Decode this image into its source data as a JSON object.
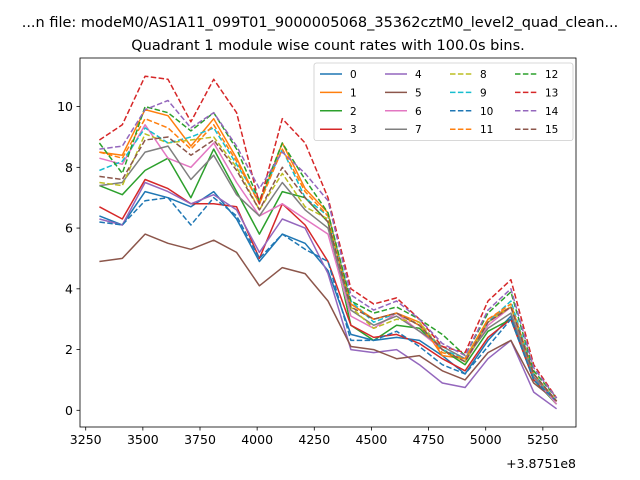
{
  "chart_data": {
    "type": "line",
    "suptitle": "...n file: modeM0/AS1A11_099T01_9000005068_35362cztM0_level2_quad_clean...",
    "title": "Quadrant 1 module wise count rates with 100.0s bins.",
    "xlabel": "",
    "ylabel": "",
    "x_offset_label": "+3.8751e8",
    "xlim": [
      3225,
      5395
    ],
    "ylim": [
      -0.55,
      11.6
    ],
    "xticks": [
      3250,
      3500,
      3750,
      4000,
      4250,
      4500,
      4750,
      5000,
      5250
    ],
    "yticks": [
      0,
      2,
      4,
      6,
      8,
      10
    ],
    "legend_position": "upper right",
    "legend_columns": 4,
    "grid": false,
    "x": [
      3310,
      3410,
      3510,
      3610,
      3710,
      3810,
      3910,
      4010,
      4110,
      4210,
      4310,
      4410,
      4510,
      4610,
      4710,
      4810,
      4910,
      5010,
      5110,
      5210,
      5310
    ],
    "series": [
      {
        "name": "0",
        "color": "#1f77b4",
        "dash": "solid",
        "values": [
          6.4,
          6.1,
          7.2,
          7.0,
          6.7,
          7.2,
          6.3,
          4.9,
          5.8,
          5.5,
          4.6,
          2.5,
          2.3,
          2.4,
          2.3,
          1.8,
          1.2,
          2.3,
          3.1,
          1.0,
          0.3
        ]
      },
      {
        "name": "1",
        "color": "#ff7f0e",
        "dash": "solid",
        "values": [
          8.5,
          8.4,
          9.9,
          9.7,
          8.7,
          9.6,
          8.3,
          6.8,
          8.8,
          7.3,
          6.5,
          3.5,
          3.0,
          3.2,
          2.9,
          1.8,
          1.7,
          3.0,
          3.4,
          1.2,
          0.3
        ]
      },
      {
        "name": "2",
        "color": "#2ca02c",
        "dash": "solid",
        "values": [
          7.4,
          7.1,
          7.9,
          8.3,
          7.0,
          8.6,
          7.2,
          5.8,
          7.2,
          7.0,
          6.2,
          2.8,
          2.3,
          2.8,
          2.7,
          2.0,
          1.5,
          2.6,
          3.0,
          1.0,
          0.2
        ]
      },
      {
        "name": "3",
        "color": "#d62728",
        "dash": "solid",
        "values": [
          6.7,
          6.3,
          7.6,
          7.3,
          6.8,
          6.8,
          6.7,
          5.0,
          6.8,
          6.1,
          4.9,
          2.8,
          2.4,
          2.5,
          2.2,
          1.7,
          1.3,
          2.4,
          3.0,
          1.0,
          0.3
        ]
      },
      {
        "name": "4",
        "color": "#9467bd",
        "dash": "solid",
        "values": [
          6.3,
          6.1,
          7.5,
          7.2,
          6.8,
          7.1,
          6.6,
          5.2,
          6.3,
          6.0,
          4.5,
          2.0,
          1.9,
          2.0,
          1.5,
          0.9,
          0.75,
          1.7,
          2.3,
          0.6,
          0.05
        ]
      },
      {
        "name": "5",
        "color": "#8c564b",
        "dash": "solid",
        "values": [
          4.9,
          5.0,
          5.8,
          5.5,
          5.3,
          5.6,
          5.2,
          4.1,
          4.7,
          4.5,
          3.6,
          2.1,
          2.0,
          1.7,
          1.8,
          1.3,
          1.0,
          1.9,
          2.3,
          0.9,
          0.3
        ]
      },
      {
        "name": "6",
        "color": "#e377c2",
        "dash": "solid",
        "values": [
          8.3,
          8.1,
          9.4,
          8.3,
          8.0,
          8.8,
          7.5,
          6.4,
          6.8,
          6.3,
          5.8,
          3.1,
          2.7,
          3.2,
          2.6,
          2.0,
          1.6,
          2.8,
          3.4,
          1.1,
          0.2
        ]
      },
      {
        "name": "7",
        "color": "#7f7f7f",
        "dash": "solid",
        "values": [
          7.4,
          7.5,
          8.5,
          8.7,
          7.6,
          8.4,
          7.1,
          6.4,
          7.5,
          6.6,
          6.0,
          3.3,
          2.8,
          3.1,
          2.6,
          2.1,
          1.7,
          2.7,
          3.2,
          1.1,
          0.3
        ]
      },
      {
        "name": "8",
        "color": "#bcbd22",
        "dash": "dashed",
        "values": [
          7.5,
          7.4,
          9.1,
          8.8,
          8.9,
          9.0,
          8.0,
          6.6,
          7.8,
          6.7,
          6.3,
          3.4,
          2.7,
          3.0,
          2.9,
          2.0,
          1.6,
          2.9,
          3.4,
          1.2,
          0.3
        ]
      },
      {
        "name": "9",
        "color": "#17becf",
        "dash": "dashed",
        "values": [
          7.9,
          8.2,
          9.3,
          8.8,
          9.0,
          9.3,
          8.1,
          6.9,
          8.6,
          7.0,
          6.4,
          3.6,
          2.9,
          3.2,
          2.8,
          2.0,
          1.7,
          2.9,
          3.6,
          1.2,
          0.3
        ]
      },
      {
        "name": "10",
        "color": "#1f77b4",
        "dash": "dashed",
        "values": [
          6.2,
          6.1,
          6.9,
          7.0,
          6.1,
          7.0,
          6.4,
          5.0,
          5.8,
          5.3,
          4.9,
          2.3,
          2.3,
          2.6,
          2.1,
          1.5,
          1.2,
          2.1,
          3.0,
          1.0,
          0.3
        ]
      },
      {
        "name": "11",
        "color": "#ff7f0e",
        "dash": "dashed",
        "values": [
          8.5,
          8.3,
          9.6,
          9.3,
          8.6,
          9.4,
          8.2,
          6.8,
          8.6,
          7.2,
          6.4,
          3.5,
          3.0,
          3.2,
          2.8,
          1.9,
          1.7,
          3.0,
          3.5,
          1.2,
          0.3
        ]
      },
      {
        "name": "12",
        "color": "#2ca02c",
        "dash": "dashed",
        "values": [
          8.8,
          7.8,
          10.0,
          9.8,
          9.2,
          9.8,
          8.6,
          6.9,
          8.8,
          7.6,
          6.5,
          3.6,
          3.2,
          3.4,
          3.0,
          2.5,
          1.8,
          3.2,
          3.9,
          1.3,
          0.4
        ]
      },
      {
        "name": "13",
        "color": "#d62728",
        "dash": "dashed",
        "values": [
          8.9,
          9.4,
          11.0,
          10.9,
          9.5,
          10.9,
          9.8,
          6.8,
          9.6,
          8.8,
          7.0,
          4.0,
          3.5,
          3.7,
          3.0,
          2.1,
          1.9,
          3.6,
          4.3,
          1.5,
          0.4
        ]
      },
      {
        "name": "14",
        "color": "#9467bd",
        "dash": "dashed",
        "values": [
          8.6,
          8.7,
          9.9,
          10.2,
          9.3,
          9.8,
          8.7,
          7.3,
          8.5,
          7.8,
          6.9,
          3.8,
          3.3,
          3.6,
          3.0,
          2.2,
          1.8,
          3.3,
          4.0,
          1.4,
          0.4
        ]
      },
      {
        "name": "15",
        "color": "#8c564b",
        "dash": "dashed",
        "values": [
          7.7,
          7.6,
          8.9,
          9.0,
          8.4,
          8.9,
          7.9,
          6.6,
          8.0,
          7.0,
          6.2,
          3.4,
          3.0,
          3.2,
          2.8,
          2.0,
          1.6,
          2.9,
          3.4,
          1.2,
          0.3
        ]
      }
    ]
  }
}
